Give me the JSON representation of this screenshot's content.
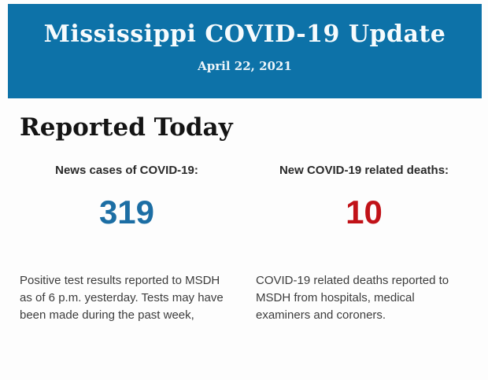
{
  "header": {
    "title": "Mississippi COVID-19 Update",
    "date": "April 22, 2021",
    "background_color": "#0d72a8",
    "text_color": "#f6fbfd"
  },
  "section": {
    "heading": "Reported Today"
  },
  "stats": [
    {
      "label": "News cases of COVID-19:",
      "value": "319",
      "value_color": "#1c6ea4",
      "description": "Positive test results reported to MSDH as of 6 p.m. yesterday. Tests may have been made during the past week,"
    },
    {
      "label": "New COVID-19 related deaths:",
      "value": "10",
      "value_color": "#c11218",
      "description": "COVID-19 related deaths reported to MSDH from hospitals, medical examiners and coroners."
    }
  ]
}
